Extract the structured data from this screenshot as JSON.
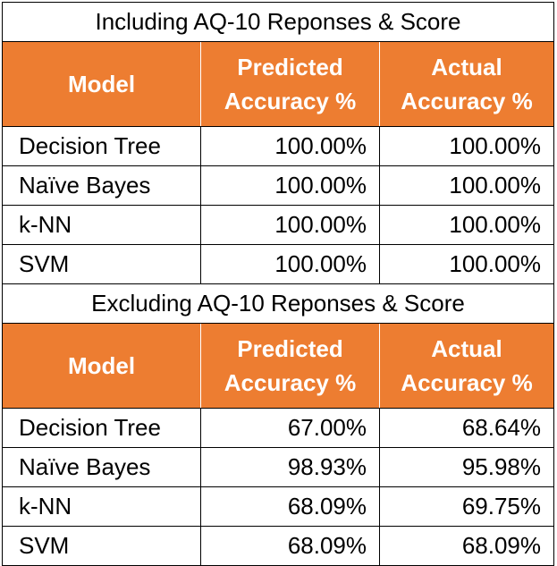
{
  "sections": [
    {
      "title": "Including AQ-10 Reponses & Score",
      "header": {
        "model": "Model",
        "predicted_line1": "Predicted",
        "predicted_line2": "Accuracy %",
        "actual_line1": "Actual",
        "actual_line2": "Accuracy %"
      },
      "rows": [
        {
          "model": "Decision Tree",
          "predicted": "100.00%",
          "actual": "100.00%"
        },
        {
          "model": "Naïve Bayes",
          "predicted": "100.00%",
          "actual": "100.00%"
        },
        {
          "model": "k-NN",
          "predicted": "100.00%",
          "actual": "100.00%"
        },
        {
          "model": "SVM",
          "predicted": "100.00%",
          "actual": "100.00%"
        }
      ]
    },
    {
      "title": "Excluding AQ-10 Reponses & Score",
      "header": {
        "model": "Model",
        "predicted_line1": "Predicted",
        "predicted_line2": "Accuracy %",
        "actual_line1": "Actual",
        "actual_line2": "Accuracy %"
      },
      "rows": [
        {
          "model": "Decision Tree",
          "predicted": "67.00%",
          "actual": "68.64%"
        },
        {
          "model": "Naïve Bayes",
          "predicted": "98.93%",
          "actual": "95.98%"
        },
        {
          "model": "k-NN",
          "predicted": "68.09%",
          "actual": "69.75%"
        },
        {
          "model": "SVM",
          "predicted": "68.09%",
          "actual": "68.09%"
        }
      ]
    }
  ],
  "colors": {
    "header_bg": "#ed7d31",
    "header_text": "#ffffff",
    "border": "#000000"
  }
}
